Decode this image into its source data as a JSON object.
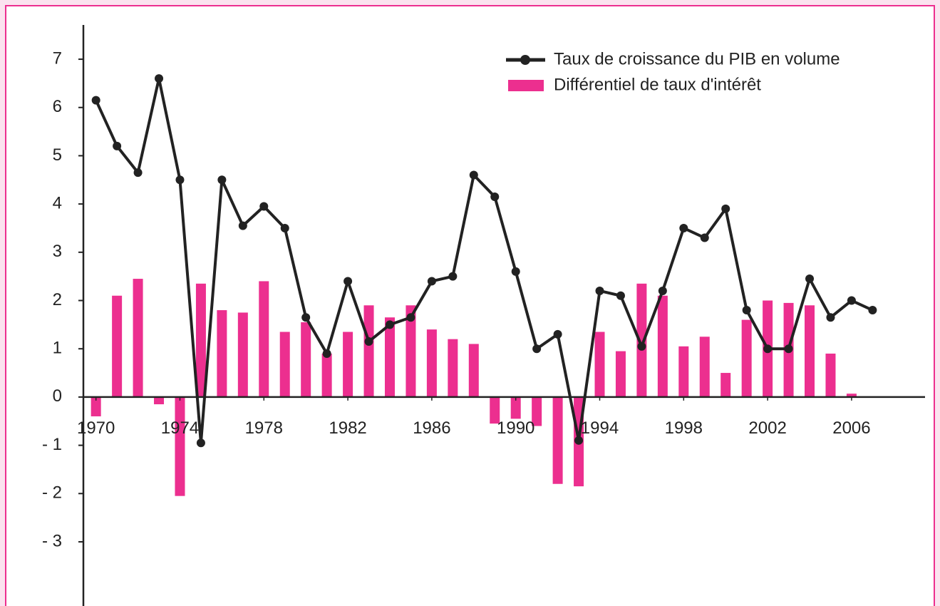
{
  "chart_data": {
    "type": "bar-line",
    "x": [
      1970,
      1971,
      1972,
      1973,
      1974,
      1975,
      1976,
      1977,
      1978,
      1979,
      1980,
      1981,
      1982,
      1983,
      1984,
      1985,
      1986,
      1987,
      1988,
      1989,
      1990,
      1991,
      1992,
      1993,
      1994,
      1995,
      1996,
      1997,
      1998,
      1999,
      2000,
      2001,
      2002,
      2003,
      2004,
      2005,
      2006,
      2007
    ],
    "series": [
      {
        "name": "Taux de croissance du PIB en volume",
        "type": "line",
        "color": "#222222",
        "values": [
          6.15,
          5.2,
          4.65,
          6.6,
          4.5,
          -0.95,
          4.5,
          3.55,
          3.95,
          3.5,
          1.65,
          0.9,
          2.4,
          1.15,
          1.5,
          1.65,
          2.4,
          2.5,
          4.6,
          4.15,
          2.6,
          1.0,
          1.3,
          -0.9,
          2.2,
          2.1,
          1.05,
          2.2,
          3.5,
          3.3,
          3.9,
          1.8,
          1.0,
          1.0,
          2.45,
          1.65,
          2.0,
          1.8
        ]
      },
      {
        "name": "Différentiel de taux d'intérêt",
        "type": "bar",
        "color": "#ec2f8f",
        "values": [
          -0.4,
          2.1,
          2.45,
          -0.15,
          -2.05,
          2.35,
          1.8,
          1.75,
          2.4,
          1.35,
          1.55,
          0.9,
          1.35,
          1.9,
          1.65,
          1.9,
          1.4,
          1.2,
          1.1,
          -0.55,
          -0.45,
          -0.6,
          -1.8,
          -1.85,
          1.35,
          0.95,
          2.35,
          2.1,
          1.05,
          1.25,
          0.5,
          1.6,
          2.0,
          1.95,
          1.9,
          0.9,
          0.07,
          null
        ]
      }
    ],
    "xlim": [
      1969.4,
      2009.5
    ],
    "xticks": [
      1970,
      1974,
      1978,
      1982,
      1986,
      1990,
      1994,
      1998,
      2002,
      2006
    ],
    "ylim": [
      -4.33,
      7.71
    ],
    "yticks": [
      {
        "value": -3,
        "label": "- 3"
      },
      {
        "value": -2,
        "label": "- 2"
      },
      {
        "value": -1,
        "label": "- 1"
      },
      0,
      1,
      2,
      3,
      4,
      5,
      6,
      7
    ],
    "legend": "upper right"
  }
}
